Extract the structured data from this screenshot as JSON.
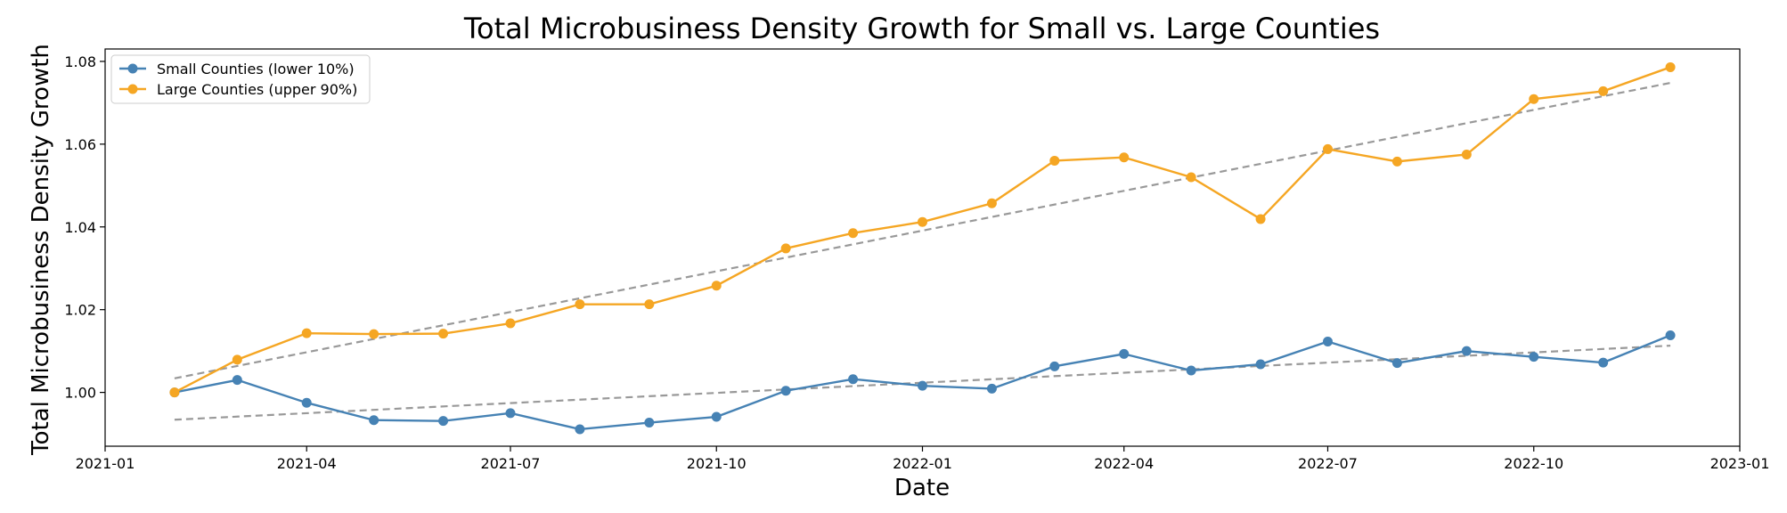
{
  "chart_data": {
    "type": "line",
    "title": "Total Microbusiness Density Growth for Small vs. Large Counties",
    "xlabel": "Date",
    "ylabel": "Total Microbusiness Density Growth",
    "xlim": [
      "2021-01-01",
      "2023-01-01"
    ],
    "ylim": [
      0.987,
      1.083
    ],
    "grid": false,
    "legend_position": "upper-left",
    "x_ticks": [
      "2021-01",
      "2021-04",
      "2021-07",
      "2021-10",
      "2022-01",
      "2022-04",
      "2022-07",
      "2022-10",
      "2023-01"
    ],
    "y_ticks": [
      "1.00",
      "1.02",
      "1.04",
      "1.06",
      "1.08"
    ],
    "x": [
      "2021-02-01",
      "2021-03-01",
      "2021-04-01",
      "2021-05-01",
      "2021-06-01",
      "2021-07-01",
      "2021-08-01",
      "2021-09-01",
      "2021-10-01",
      "2021-11-01",
      "2021-12-01",
      "2022-01-01",
      "2022-02-01",
      "2022-03-01",
      "2022-04-01",
      "2022-05-01",
      "2022-06-01",
      "2022-07-01",
      "2022-08-01",
      "2022-09-01",
      "2022-10-01",
      "2022-11-01",
      "2022-12-01"
    ],
    "series": [
      {
        "name": "Small Counties (lower 10%)",
        "color": "#4682b4",
        "marker": "circle",
        "values": [
          1.0,
          1.003,
          0.9975,
          0.9933,
          0.9931,
          0.995,
          0.9911,
          0.9927,
          0.9941,
          1.0004,
          1.0032,
          1.0016,
          1.0009,
          1.0063,
          1.0093,
          1.0053,
          1.0068,
          1.0123,
          1.0071,
          1.01,
          1.0086,
          1.0072,
          1.0138
        ],
        "trend": [
          0.9934,
          1.0113
        ]
      },
      {
        "name": "Large Counties (upper 90%)",
        "color": "#f5a623",
        "marker": "circle",
        "values": [
          1.0,
          1.0079,
          1.0143,
          1.0141,
          1.0142,
          1.0167,
          1.0213,
          1.0213,
          1.0258,
          1.0348,
          1.0385,
          1.0412,
          1.0457,
          1.056,
          1.0568,
          1.052,
          1.0419,
          1.0588,
          1.0558,
          1.0575,
          1.0709,
          1.0728,
          1.0786
        ],
        "trend": [
          1.0034,
          1.0748
        ]
      }
    ],
    "trend_color": "#999999"
  }
}
